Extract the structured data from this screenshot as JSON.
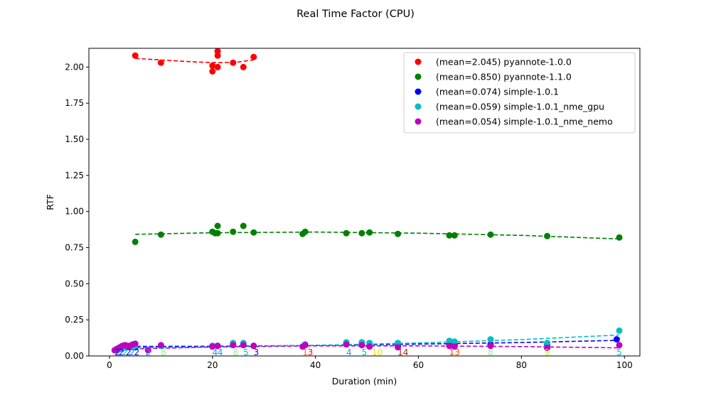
{
  "chart_data": {
    "type": "scatter",
    "title": "Real Time Factor (CPU)",
    "xlabel": "Duration (min)",
    "ylabel": "RTF",
    "xlim": [
      -4,
      103
    ],
    "ylim": [
      0,
      2.13
    ],
    "xticks": [
      "0",
      "20",
      "40",
      "60",
      "80",
      "100"
    ],
    "xtick_values": [
      0,
      20,
      40,
      60,
      80,
      100
    ],
    "yticks": [
      "0.00",
      "0.25",
      "0.50",
      "0.75",
      "1.00",
      "1.25",
      "1.50",
      "1.75",
      "2.00"
    ],
    "ytick_values": [
      0,
      0.25,
      0.5,
      0.75,
      1.0,
      1.25,
      1.5,
      1.75,
      2.0
    ],
    "grid": false,
    "legend_position": "top-right",
    "series": [
      {
        "name": "(mean=2.045) pyannote-1.0.0",
        "color": "#ff0000",
        "points": [
          [
            5,
            2.08
          ],
          [
            10,
            2.03
          ],
          [
            20,
            2.01
          ],
          [
            20,
            1.97
          ],
          [
            21,
            2.11
          ],
          [
            21,
            2.08
          ],
          [
            21,
            2.0
          ],
          [
            24,
            2.03
          ],
          [
            26,
            2.0
          ],
          [
            28,
            2.07
          ]
        ],
        "trend": [
          [
            5,
            2.06
          ],
          [
            12,
            2.045
          ],
          [
            17,
            2.035
          ],
          [
            21,
            2.03
          ],
          [
            25,
            2.035
          ],
          [
            28,
            2.05
          ]
        ]
      },
      {
        "name": "(mean=0.850) pyannote-1.1.0",
        "color": "#008000",
        "points": [
          [
            5,
            0.79
          ],
          [
            10,
            0.84
          ],
          [
            20,
            0.86
          ],
          [
            20.5,
            0.85
          ],
          [
            21,
            0.9
          ],
          [
            21,
            0.85
          ],
          [
            24,
            0.86
          ],
          [
            26,
            0.9
          ],
          [
            28,
            0.855
          ],
          [
            37.5,
            0.845
          ],
          [
            38,
            0.86
          ],
          [
            46,
            0.85
          ],
          [
            49,
            0.85
          ],
          [
            50.5,
            0.855
          ],
          [
            56,
            0.845
          ],
          [
            66,
            0.835
          ],
          [
            67,
            0.835
          ],
          [
            74,
            0.84
          ],
          [
            85,
            0.83
          ],
          [
            99,
            0.82
          ]
        ],
        "trend": [
          [
            5,
            0.842
          ],
          [
            20,
            0.853
          ],
          [
            40,
            0.858
          ],
          [
            60,
            0.85
          ],
          [
            80,
            0.835
          ],
          [
            99,
            0.81
          ]
        ]
      },
      {
        "name": "(mean=0.074) simple-1.0.1",
        "color": "#0000ff",
        "points": [
          [
            1.5,
            0.04
          ],
          [
            2,
            0.05
          ],
          [
            2.5,
            0.06
          ],
          [
            3,
            0.06
          ],
          [
            3.5,
            0.07
          ],
          [
            4,
            0.06
          ],
          [
            4.5,
            0.07
          ],
          [
            5,
            0.06
          ],
          [
            7.5,
            0.04
          ],
          [
            10,
            0.07
          ],
          [
            20,
            0.07
          ],
          [
            21,
            0.07
          ],
          [
            24,
            0.08
          ],
          [
            26,
            0.08
          ],
          [
            28,
            0.07
          ],
          [
            38,
            0.08
          ],
          [
            46,
            0.08
          ],
          [
            49,
            0.08
          ],
          [
            50.5,
            0.07
          ],
          [
            56,
            0.07
          ],
          [
            66,
            0.08
          ],
          [
            67,
            0.08
          ],
          [
            74,
            0.08
          ],
          [
            85,
            0.08
          ],
          [
            98.5,
            0.115
          ]
        ],
        "trend": [
          [
            1.5,
            0.066
          ],
          [
            20,
            0.067
          ],
          [
            40,
            0.073
          ],
          [
            60,
            0.082
          ],
          [
            80,
            0.093
          ],
          [
            99,
            0.108
          ]
        ]
      },
      {
        "name": "(mean=0.059) simple-1.0.1_nme_gpu",
        "color": "#00bfbf",
        "points": [
          [
            1.5,
            0.04
          ],
          [
            2.5,
            0.05
          ],
          [
            3.5,
            0.06
          ],
          [
            4.5,
            0.06
          ],
          [
            5,
            0.07
          ],
          [
            10,
            0.07
          ],
          [
            20,
            0.07
          ],
          [
            21,
            0.07
          ],
          [
            24,
            0.09
          ],
          [
            26,
            0.09
          ],
          [
            28,
            0.07
          ],
          [
            38,
            0.08
          ],
          [
            46,
            0.095
          ],
          [
            49,
            0.095
          ],
          [
            50.5,
            0.09
          ],
          [
            56,
            0.09
          ],
          [
            66,
            0.105
          ],
          [
            67,
            0.1
          ],
          [
            74,
            0.115
          ],
          [
            85,
            0.09
          ],
          [
            99,
            0.175
          ]
        ],
        "trend": [
          [
            1.5,
            0.056
          ],
          [
            20,
            0.062
          ],
          [
            40,
            0.074
          ],
          [
            60,
            0.09
          ],
          [
            80,
            0.113
          ],
          [
            99,
            0.145
          ]
        ]
      },
      {
        "name": "(mean=0.054) simple-1.0.1_nme_nemo",
        "color": "#bf00bf",
        "points": [
          [
            1,
            0.04
          ],
          [
            1.5,
            0.05
          ],
          [
            2,
            0.06
          ],
          [
            2.5,
            0.07
          ],
          [
            3,
            0.075
          ],
          [
            3.5,
            0.07
          ],
          [
            4,
            0.07
          ],
          [
            4.5,
            0.08
          ],
          [
            5,
            0.085
          ],
          [
            7.5,
            0.04
          ],
          [
            10,
            0.075
          ],
          [
            20,
            0.065
          ],
          [
            21,
            0.07
          ],
          [
            24,
            0.075
          ],
          [
            26,
            0.075
          ],
          [
            28,
            0.07
          ],
          [
            37.5,
            0.065
          ],
          [
            38,
            0.075
          ],
          [
            46,
            0.08
          ],
          [
            49,
            0.075
          ],
          [
            50.5,
            0.065
          ],
          [
            56,
            0.06
          ],
          [
            66,
            0.07
          ],
          [
            67,
            0.065
          ],
          [
            74,
            0.07
          ],
          [
            85,
            0.055
          ],
          [
            99,
            0.075
          ]
        ],
        "trend": [
          [
            1,
            0.046
          ],
          [
            20,
            0.062
          ],
          [
            40,
            0.07
          ],
          [
            60,
            0.07
          ],
          [
            80,
            0.065
          ],
          [
            99,
            0.056
          ]
        ]
      }
    ],
    "count_labels": [
      {
        "text": "2",
        "x": 1.5,
        "color": "#0000ff"
      },
      {
        "text": "2",
        "x": 2.3,
        "color": "#0000ff"
      },
      {
        "text": "2",
        "x": 3.0,
        "color": "#00bfbf"
      },
      {
        "text": "2",
        "x": 3.7,
        "color": "#0000ff"
      },
      {
        "text": "2",
        "x": 4.4,
        "color": "#1e90ff"
      },
      {
        "text": "2",
        "x": 5.3,
        "color": "#0000ff"
      },
      {
        "text": "2",
        "x": 7.5,
        "color": "#1e90ff"
      },
      {
        "text": "8",
        "x": 10.5,
        "color": "#90ee90"
      },
      {
        "text": "4",
        "x": 20.5,
        "color": "#1e90ff"
      },
      {
        "text": "4",
        "x": 21.5,
        "color": "#1e90ff"
      },
      {
        "text": "8",
        "x": 24.5,
        "color": "#90ee90"
      },
      {
        "text": "5",
        "x": 26.5,
        "color": "#00bfbf"
      },
      {
        "text": "3",
        "x": 28.5,
        "color": "#0000ff"
      },
      {
        "text": "1",
        "x": 38,
        "color": "#ff6347"
      },
      {
        "text": "3",
        "x": 39,
        "color": "#ff0000"
      },
      {
        "text": "4",
        "x": 46.5,
        "color": "#1e90ff"
      },
      {
        "text": "5",
        "x": 49.5,
        "color": "#00bfbf"
      },
      {
        "text": "10",
        "x": 52,
        "color": "#ffd700"
      },
      {
        "text": "14",
        "x": 57,
        "color": "#b22222"
      },
      {
        "text": "13",
        "x": 67,
        "color": "#ff4500"
      },
      {
        "text": "8",
        "x": 74,
        "color": "#90ee90"
      },
      {
        "text": "9",
        "x": 85,
        "color": "#adff2f"
      },
      {
        "text": "5",
        "x": 99,
        "color": "#00bfbf"
      }
    ]
  }
}
